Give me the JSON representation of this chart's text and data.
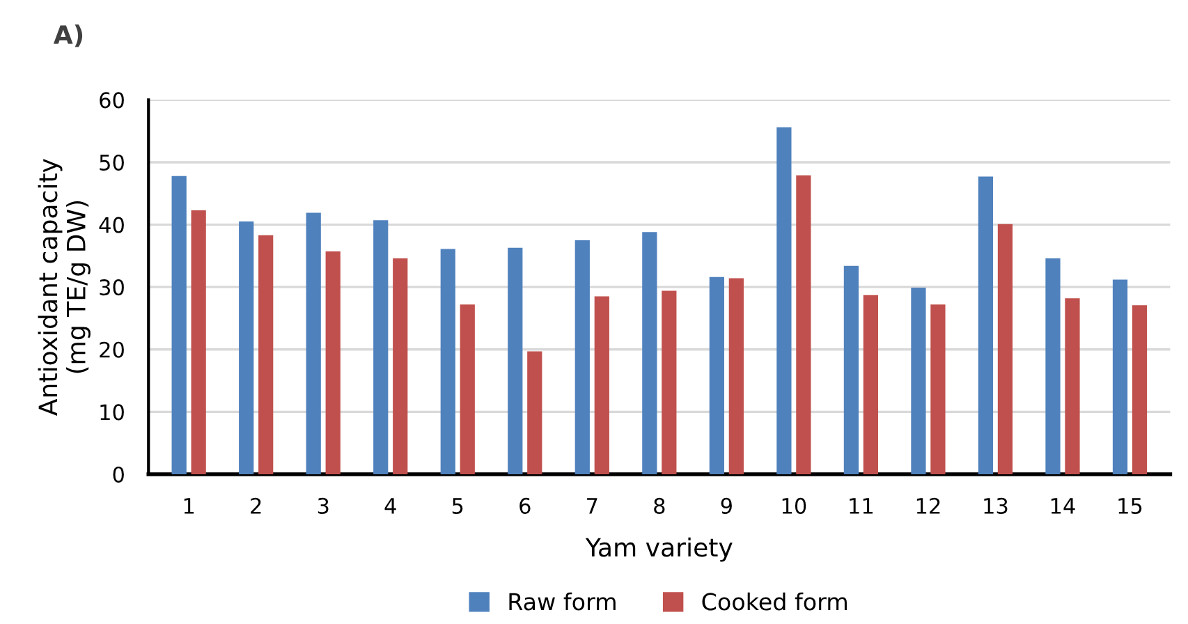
{
  "chart_data": {
    "type": "bar",
    "xlabel": "Yam variety",
    "ylabel": "Antioxidant capacity\n(mg TE/g DW)",
    "annotations": [
      "A)"
    ],
    "categories": [
      "1",
      "2",
      "3",
      "4",
      "5",
      "6",
      "7",
      "8",
      "9",
      "10",
      "11",
      "12",
      "13",
      "14",
      "15"
    ],
    "series": [
      {
        "name": "Raw form",
        "color": "#4f81bd",
        "values": [
          47.8,
          40.5,
          41.9,
          40.7,
          36.1,
          36.3,
          37.5,
          38.8,
          31.6,
          55.6,
          33.4,
          29.9,
          47.7,
          34.6,
          31.2
        ]
      },
      {
        "name": "Cooked form",
        "color": "#c0504d",
        "values": [
          42.3,
          38.3,
          35.7,
          34.6,
          27.2,
          19.7,
          28.5,
          29.4,
          31.4,
          47.9,
          28.7,
          27.2,
          40.1,
          28.2,
          27.1
        ]
      }
    ],
    "ylim": [
      0,
      60
    ],
    "yticks": [
      0,
      10,
      20,
      30,
      40,
      50,
      60
    ],
    "grid": "y",
    "legend": "bottom"
  }
}
